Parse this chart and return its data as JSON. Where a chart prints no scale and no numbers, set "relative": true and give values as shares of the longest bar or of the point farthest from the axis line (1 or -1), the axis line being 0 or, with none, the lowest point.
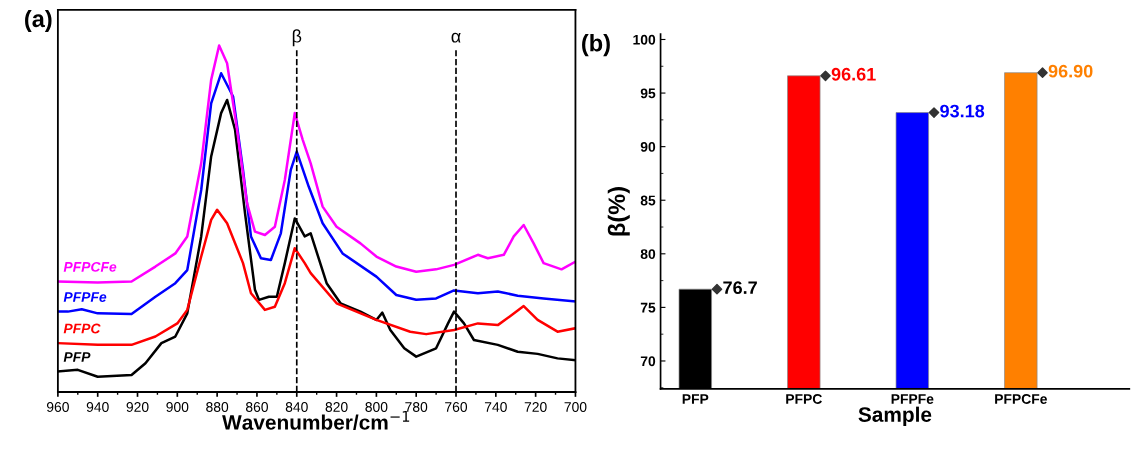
{
  "chart_data": [
    {
      "type": "line",
      "title": "(a)",
      "xlabel": "Wavenumber/cm$^{−1}$",
      "relative": true,
      "xlim": [
        960,
        700
      ],
      "xticks": [
        960,
        940,
        920,
        900,
        880,
        860,
        840,
        820,
        800,
        780,
        760,
        740,
        720,
        700
      ],
      "tick_labels": "x",
      "legend": false,
      "grid": false,
      "ref_lines": [
        {
          "axis": "x",
          "value": 840,
          "label": "β",
          "color": "#000000",
          "line_style": "dashed"
        },
        {
          "axis": "x",
          "value": 760,
          "label": "α",
          "color": "#000000",
          "line_style": "dashed"
        }
      ],
      "series": [
        {
          "name": "PFP",
          "color": "#000000",
          "x": [
            960,
            950,
            940,
            923,
            916,
            908,
            901,
            895,
            888,
            883,
            878,
            875,
            871,
            866,
            861,
            859,
            854,
            850,
            846,
            841,
            836,
            833,
            825,
            818,
            808,
            800,
            797,
            793,
            786,
            780,
            770,
            764,
            761,
            756,
            751,
            739,
            729,
            719,
            709,
            700
          ],
          "values": [
            0.059,
            0.064,
            0.044,
            0.049,
            0.083,
            0.141,
            0.16,
            0.227,
            0.449,
            0.68,
            0.805,
            0.843,
            0.757,
            0.516,
            0.295,
            0.266,
            0.275,
            0.275,
            0.372,
            0.501,
            0.449,
            0.458,
            0.314,
            0.256,
            0.232,
            0.208,
            0.229,
            0.179,
            0.126,
            0.102,
            0.126,
            0.198,
            0.232,
            0.198,
            0.15,
            0.136,
            0.116,
            0.11,
            0.097,
            0.092
          ]
        },
        {
          "name": "PFPC",
          "color": "#ff0000",
          "x": [
            960,
            940,
            923,
            911,
            900,
            895,
            888,
            883,
            880,
            875,
            867,
            863,
            856,
            851,
            846,
            841,
            836,
            833,
            820,
            800,
            783,
            775,
            761,
            749,
            739,
            733,
            726,
            719,
            709,
            700
          ],
          "values": [
            0.141,
            0.136,
            0.136,
            0.16,
            0.198,
            0.237,
            0.391,
            0.497,
            0.526,
            0.487,
            0.372,
            0.285,
            0.237,
            0.246,
            0.314,
            0.415,
            0.372,
            0.343,
            0.256,
            0.208,
            0.174,
            0.167,
            0.179,
            0.198,
            0.193,
            0.218,
            0.248,
            0.208,
            0.174,
            0.184
          ]
        },
        {
          "name": "PFPFe",
          "color": "#0000ff",
          "x": [
            960,
            955,
            948,
            940,
            923,
            911,
            901,
            895,
            888,
            883,
            878,
            872,
            867,
            863,
            858,
            853,
            848,
            843,
            840,
            834,
            827,
            817,
            800,
            790,
            780,
            770,
            761,
            749,
            739,
            729,
            716,
            700
          ],
          "values": [
            0.232,
            0.232,
            0.239,
            0.227,
            0.225,
            0.275,
            0.314,
            0.352,
            0.583,
            0.833,
            0.92,
            0.853,
            0.641,
            0.449,
            0.386,
            0.381,
            0.458,
            0.641,
            0.694,
            0.593,
            0.487,
            0.4,
            0.333,
            0.28,
            0.266,
            0.27,
            0.293,
            0.285,
            0.29,
            0.278,
            0.27,
            0.261
          ]
        },
        {
          "name": "PFPCFe",
          "color": "#ff00ff",
          "x": [
            960,
            940,
            923,
            911,
            901,
            895,
            888,
            883,
            879,
            875,
            870,
            865,
            861,
            856,
            851,
            846,
            841,
            837,
            833,
            827,
            820,
            808,
            800,
            790,
            780,
            770,
            761,
            749,
            744,
            736,
            731,
            726,
            721,
            716,
            707,
            700
          ],
          "values": [
            0.319,
            0.316,
            0.319,
            0.362,
            0.4,
            0.449,
            0.66,
            0.901,
            1.0,
            0.949,
            0.757,
            0.545,
            0.463,
            0.453,
            0.477,
            0.612,
            0.805,
            0.728,
            0.66,
            0.535,
            0.477,
            0.429,
            0.391,
            0.362,
            0.347,
            0.354,
            0.367,
            0.396,
            0.386,
            0.396,
            0.449,
            0.482,
            0.429,
            0.372,
            0.354,
            0.376
          ]
        }
      ]
    },
    {
      "type": "bar",
      "title": "(b)",
      "xlabel": "Sample",
      "ylabel": "β(%)",
      "categories": [
        "PFP",
        "PFPC",
        "PFPFe",
        "PFPCFe"
      ],
      "ylim": [
        67.4,
        100.5
      ],
      "yticks": [
        70,
        75,
        80,
        85,
        90,
        95,
        100
      ],
      "grid": false,
      "legend": false,
      "series": [
        {
          "values": [
            76.7,
            96.61,
            93.18,
            96.9
          ],
          "colors": [
            "#000000",
            "#ff0000",
            "#0000ff",
            "#ff8000"
          ]
        },
        {
          "type": "scatter",
          "x": [
            "PFP",
            "PFPC",
            "PFPFe",
            "PFPCFe"
          ],
          "values": [
            76.7,
            96.61,
            93.18,
            96.9
          ],
          "color": "#333333",
          "marker": "diamond",
          "value_labels": [
            "76.7",
            "96.61",
            "93.18",
            "96.90"
          ]
        }
      ]
    }
  ]
}
